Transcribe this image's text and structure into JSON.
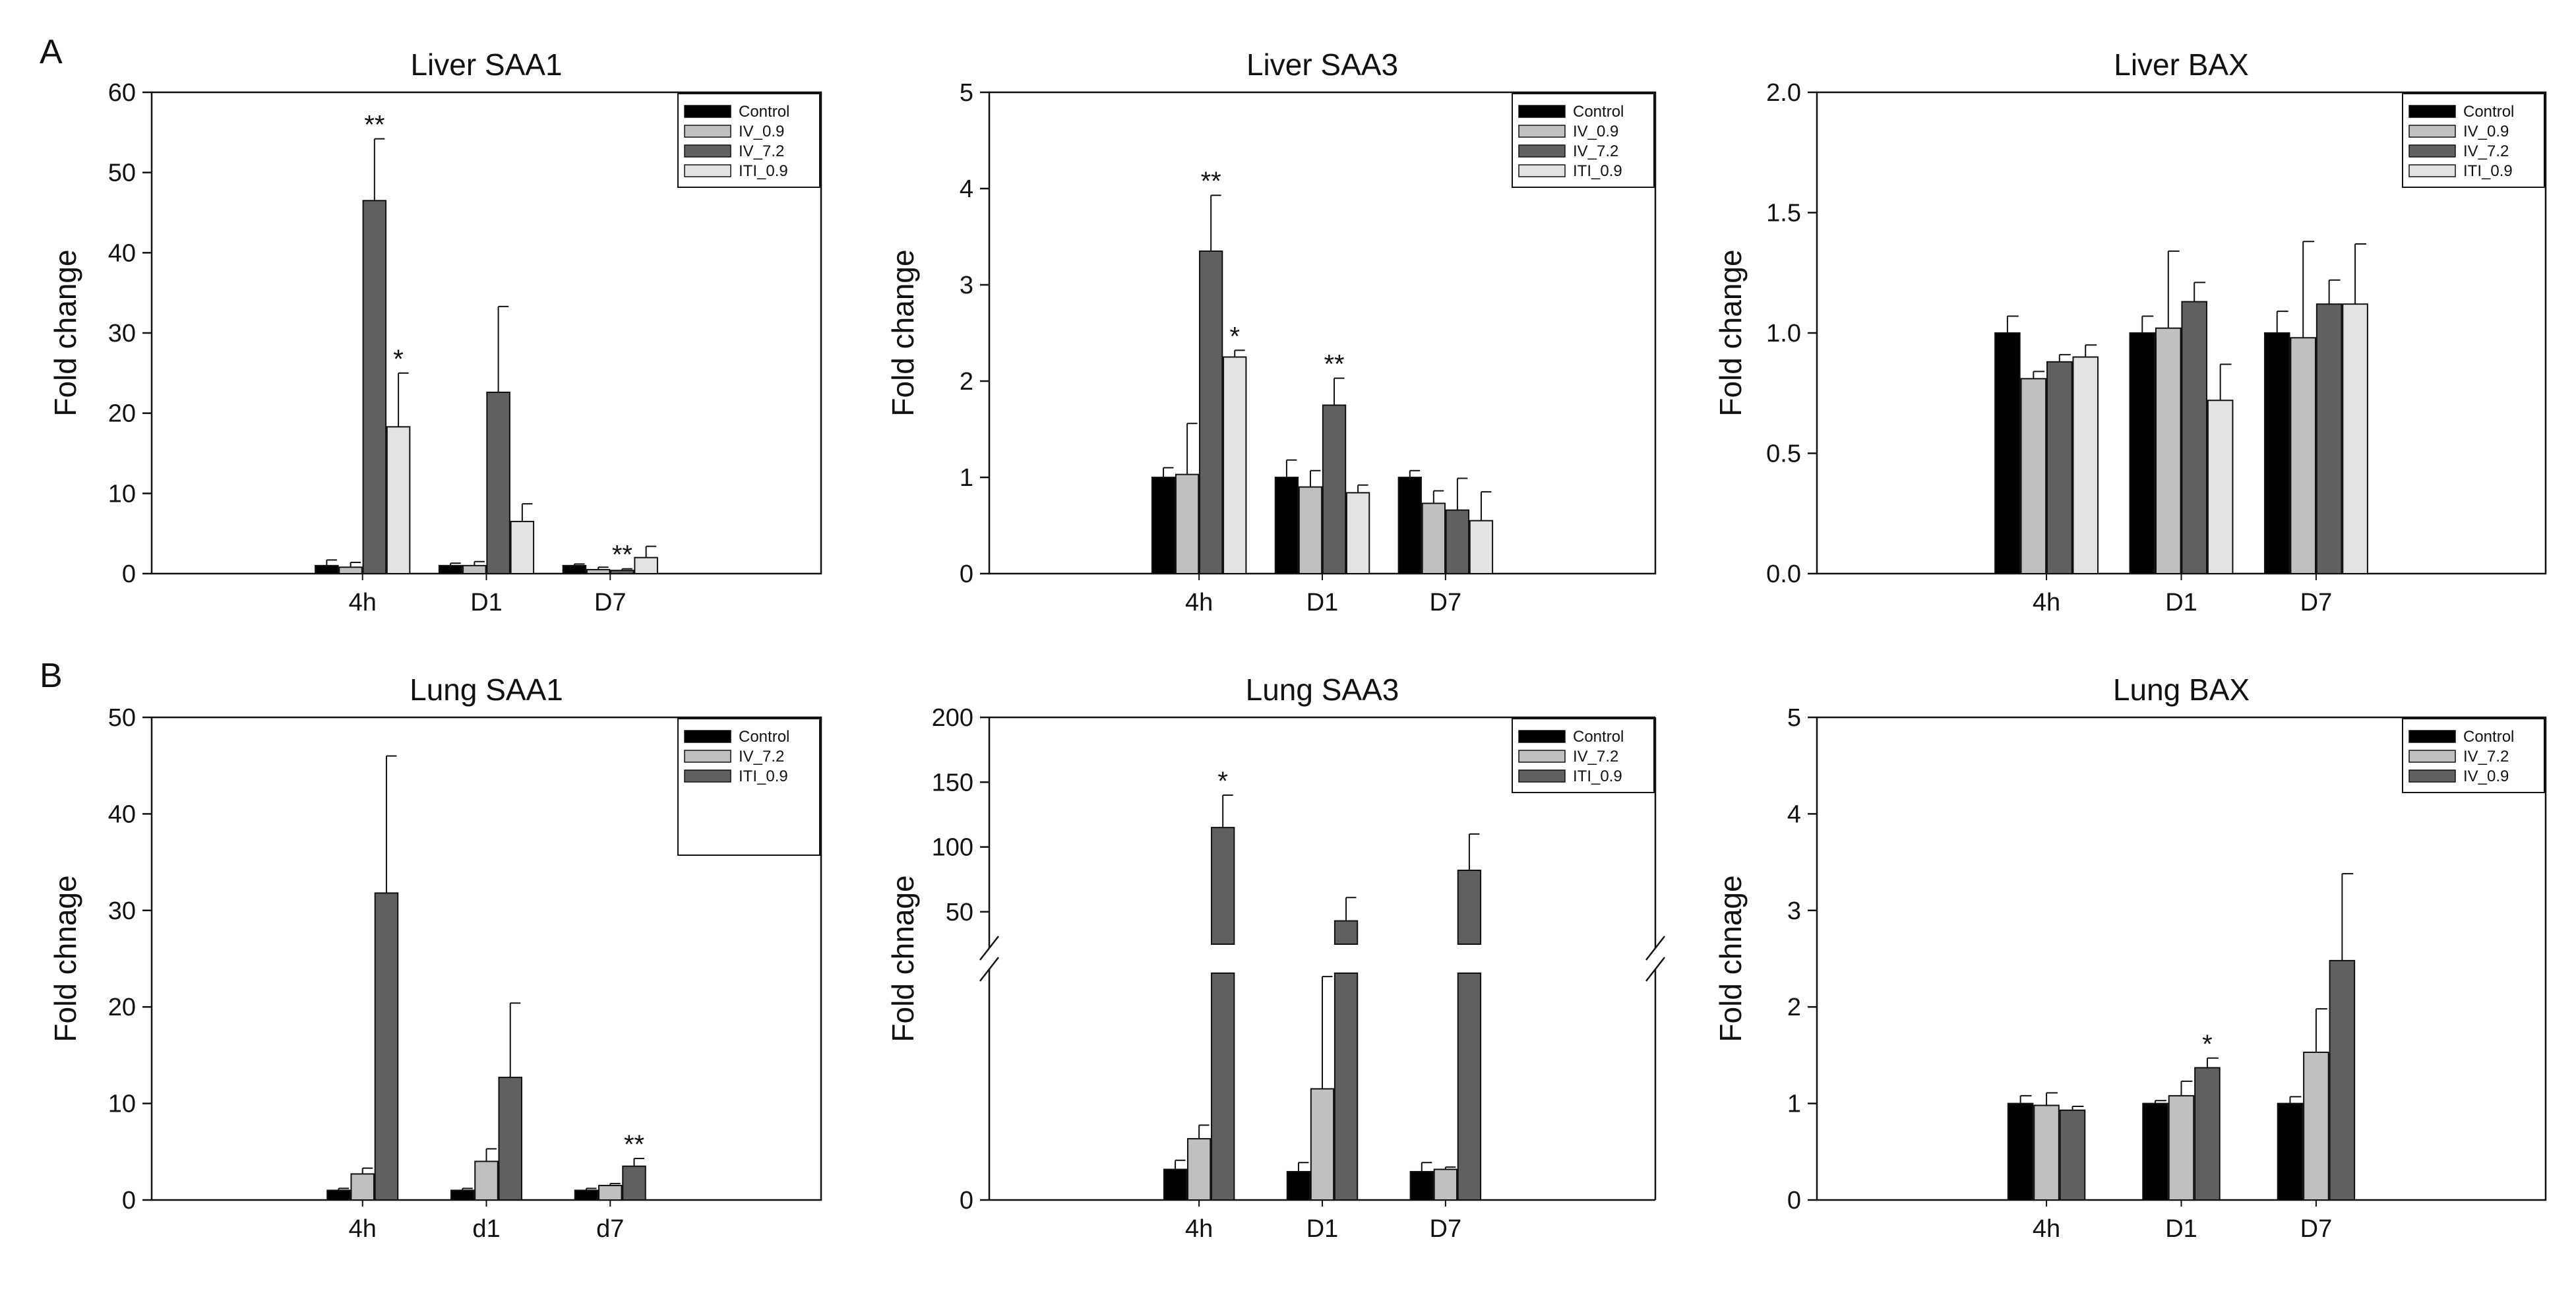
{
  "panel_labels": {
    "A": "A",
    "B": "B"
  },
  "chart_data": [
    {
      "type": "bar",
      "title": "Liver SAA1",
      "ylabel": "Fold change",
      "xlabel": "",
      "ylim": [
        0,
        60
      ],
      "yticks": [
        "0",
        "10",
        "20",
        "30",
        "40",
        "50",
        "60"
      ],
      "categories": [
        "4h",
        "D1",
        "D7"
      ],
      "series": [
        {
          "name": "Control",
          "color": "#000000",
          "values": [
            1.0,
            1.0,
            1.0
          ],
          "errors": [
            0.7,
            0.3,
            0.2
          ]
        },
        {
          "name": "IV_0.9",
          "color": "#c0c0c0",
          "values": [
            0.8,
            1.0,
            0.5
          ],
          "errors": [
            0.6,
            0.5,
            0.3
          ]
        },
        {
          "name": "IV_7.2",
          "color": "#606060",
          "values": [
            46.5,
            22.6,
            0.4
          ],
          "errors": [
            7.7,
            10.7,
            0.2
          ]
        },
        {
          "name": "ITI_0.9",
          "color": "#e3e3e3",
          "values": [
            18.3,
            6.5,
            2.0
          ],
          "errors": [
            6.7,
            2.2,
            1.4
          ]
        }
      ],
      "annotations": [
        {
          "category": 0,
          "series": 2,
          "text": "**"
        },
        {
          "category": 0,
          "series": 3,
          "text": "*"
        },
        {
          "category": 2,
          "series": 2,
          "text": "**"
        }
      ]
    },
    {
      "type": "bar",
      "title": "Liver SAA3",
      "ylabel": "Fold change",
      "xlabel": "",
      "ylim": [
        0,
        5
      ],
      "yticks": [
        "0",
        "1",
        "2",
        "3",
        "4",
        "5"
      ],
      "categories": [
        "4h",
        "D1",
        "D7"
      ],
      "series": [
        {
          "name": "Control",
          "color": "#000000",
          "values": [
            1.0,
            1.0,
            1.0
          ],
          "errors": [
            0.1,
            0.18,
            0.07
          ]
        },
        {
          "name": "IV_0.9",
          "color": "#c0c0c0",
          "values": [
            1.03,
            0.9,
            0.73
          ],
          "errors": [
            0.53,
            0.17,
            0.13
          ]
        },
        {
          "name": "IV_7.2",
          "color": "#606060",
          "values": [
            3.35,
            1.75,
            0.66
          ],
          "errors": [
            0.58,
            0.28,
            0.33
          ]
        },
        {
          "name": "ITI_0.9",
          "color": "#e3e3e3",
          "values": [
            2.25,
            0.84,
            0.55
          ],
          "errors": [
            0.07,
            0.08,
            0.3
          ]
        }
      ],
      "annotations": [
        {
          "category": 0,
          "series": 2,
          "text": "**"
        },
        {
          "category": 0,
          "series": 3,
          "text": "*"
        },
        {
          "category": 1,
          "series": 2,
          "text": "**"
        }
      ]
    },
    {
      "type": "bar",
      "title": "Liver BAX",
      "ylabel": "Fold change",
      "xlabel": "",
      "ylim": [
        0,
        2.0
      ],
      "yticks": [
        "0.0",
        "0.5",
        "1.0",
        "1.5",
        "2.0"
      ],
      "categories": [
        "4h",
        "D1",
        "D7"
      ],
      "series": [
        {
          "name": "Control",
          "color": "#000000",
          "values": [
            1.0,
            1.0,
            1.0
          ],
          "errors": [
            0.07,
            0.07,
            0.09
          ]
        },
        {
          "name": "IV_0.9",
          "color": "#c0c0c0",
          "values": [
            0.81,
            1.02,
            0.98
          ],
          "errors": [
            0.03,
            0.32,
            0.4
          ]
        },
        {
          "name": "IV_7.2",
          "color": "#606060",
          "values": [
            0.88,
            1.13,
            1.12
          ],
          "errors": [
            0.03,
            0.08,
            0.1
          ]
        },
        {
          "name": "ITI_0.9",
          "color": "#e3e3e3",
          "values": [
            0.9,
            0.72,
            1.12
          ],
          "errors": [
            0.05,
            0.15,
            0.25
          ]
        }
      ],
      "annotations": []
    },
    {
      "type": "bar",
      "title": "Lung SAA1",
      "ylabel": "Fold chnage",
      "xlabel": "",
      "ylim": [
        0,
        50
      ],
      "yticks": [
        "0",
        "10",
        "20",
        "30",
        "40",
        "50"
      ],
      "categories": [
        "4h",
        "d1",
        "d7"
      ],
      "series": [
        {
          "name": "Control",
          "color": "#000000",
          "values": [
            1.0,
            1.0,
            1.0
          ],
          "errors": [
            0.2,
            0.2,
            0.2
          ]
        },
        {
          "name": "IV_7.2",
          "color": "#c0c0c0",
          "values": [
            2.7,
            4.0,
            1.5
          ],
          "errors": [
            0.6,
            1.3,
            0.2
          ]
        },
        {
          "name": "ITI_0.9",
          "color": "#606060",
          "values": [
            31.8,
            12.7,
            3.5
          ],
          "errors": [
            14.2,
            7.7,
            0.8
          ]
        }
      ],
      "annotations": [
        {
          "category": 2,
          "series": 2,
          "text": "**"
        }
      ]
    },
    {
      "type": "bar",
      "title": "Lung SAA3",
      "ylabel": "Fold chnage",
      "xlabel": "",
      "broken_axis": true,
      "ylim_upper": [
        25,
        200
      ],
      "yticks_upper": [
        "50",
        "100",
        "150",
        "200"
      ],
      "ylim_lower": [
        0,
        20
      ],
      "yticks_lower": [
        "0"
      ],
      "categories": [
        "4h",
        "D1",
        "D7"
      ],
      "series": [
        {
          "name": "Control",
          "color": "#000000",
          "values": [
            2.7,
            2.5,
            2.5
          ],
          "errors": [
            0.8,
            0.8,
            0.8
          ]
        },
        {
          "name": "IV_7.2",
          "color": "#c0c0c0",
          "values": [
            5.4,
            9.8,
            2.7
          ],
          "errors": [
            1.2,
            9.9,
            0.2
          ]
        },
        {
          "name": "ITI_0.9",
          "color": "#606060",
          "values": [
            115,
            43,
            82
          ],
          "errors": [
            25,
            18,
            28
          ]
        }
      ],
      "annotations": [
        {
          "category": 0,
          "series": 2,
          "text": "*"
        }
      ]
    },
    {
      "type": "bar",
      "title": "Lung BAX",
      "ylabel": "Fold chnage",
      "xlabel": "",
      "ylim": [
        0,
        5
      ],
      "yticks": [
        "0",
        "1",
        "2",
        "3",
        "4",
        "5"
      ],
      "categories": [
        "4h",
        "D1",
        "D7"
      ],
      "series": [
        {
          "name": "Control",
          "color": "#000000",
          "values": [
            1.0,
            1.0,
            1.0
          ],
          "errors": [
            0.08,
            0.03,
            0.07
          ]
        },
        {
          "name": "IV_7.2",
          "color": "#c0c0c0",
          "values": [
            0.98,
            1.08,
            1.53
          ],
          "errors": [
            0.13,
            0.15,
            0.45
          ]
        },
        {
          "name": "IV_0.9",
          "color": "#606060",
          "values": [
            0.93,
            1.37,
            2.48
          ],
          "errors": [
            0.04,
            0.1,
            0.9
          ]
        }
      ],
      "annotations": [
        {
          "category": 1,
          "series": 2,
          "text": "*"
        }
      ]
    }
  ]
}
